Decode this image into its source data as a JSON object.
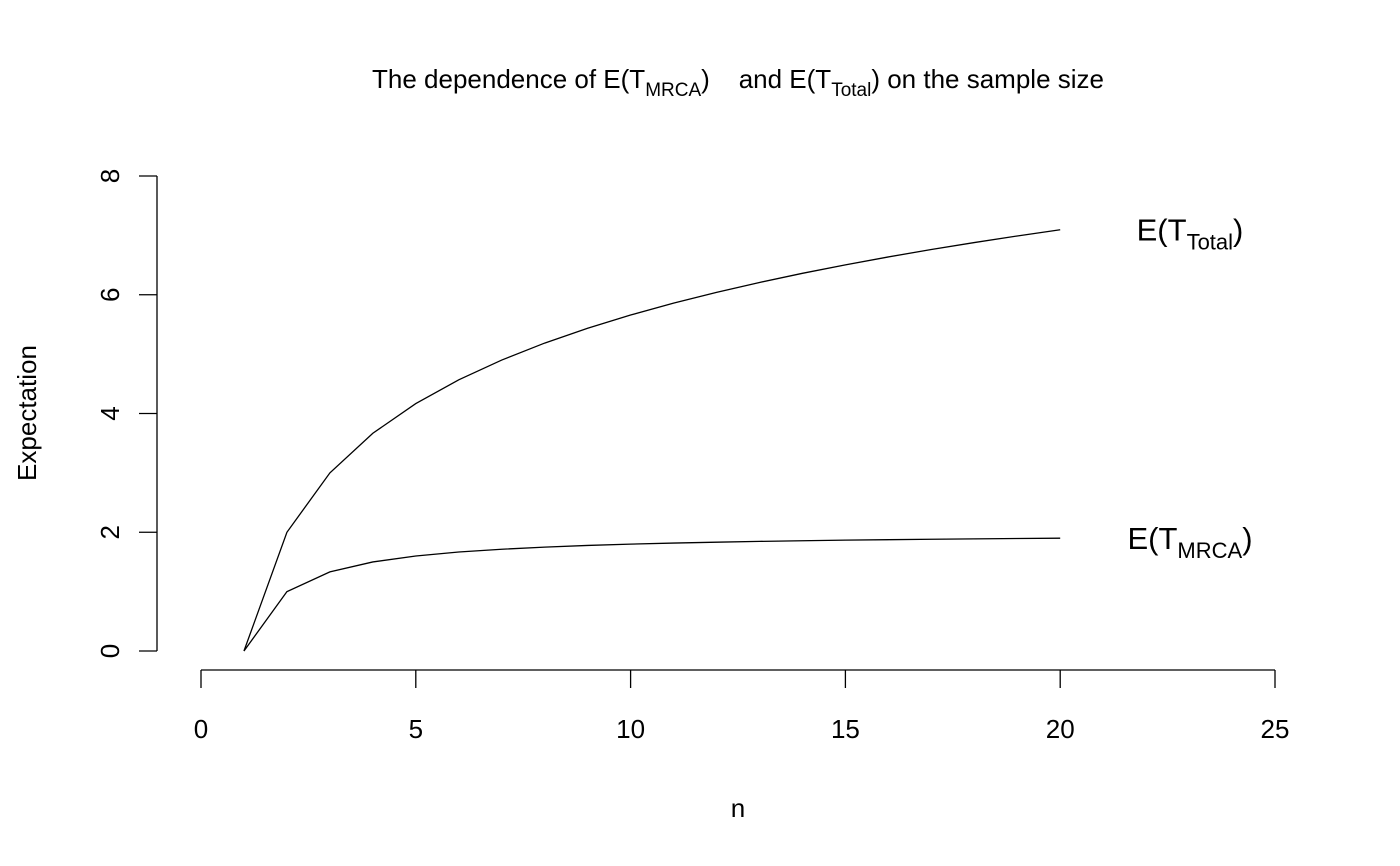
{
  "chart_data": {
    "type": "line",
    "title": {
      "pre": "The dependence of E(T",
      "sub1": "MRCA",
      "mid": ")    and E(T",
      "sub2": "Total",
      "post": ") on the sample size"
    },
    "xlabel": "n",
    "ylabel": "Expectation",
    "xlim": [
      0,
      25
    ],
    "ylim": [
      0,
      8
    ],
    "xticks": [
      0,
      5,
      10,
      15,
      20,
      25
    ],
    "yticks": [
      0,
      2,
      4,
      6,
      8
    ],
    "grid": false,
    "legend": "none",
    "x": [
      1,
      2,
      3,
      4,
      5,
      6,
      7,
      8,
      9,
      10,
      11,
      12,
      13,
      14,
      15,
      16,
      17,
      18,
      19,
      20
    ],
    "series": [
      {
        "name": "E(T_Total)",
        "label": {
          "pre": "E(T",
          "sub": "Total",
          "post": ")"
        },
        "values": [
          0,
          2,
          3,
          3.667,
          4.167,
          4.567,
          4.9,
          5.186,
          5.436,
          5.658,
          5.858,
          6.04,
          6.207,
          6.361,
          6.504,
          6.637,
          6.762,
          6.879,
          6.99,
          7.095
        ]
      },
      {
        "name": "E(T_MRCA)",
        "label": {
          "pre": "E(T",
          "sub": "MRCA",
          "post": ")"
        },
        "values": [
          0,
          1,
          1.333,
          1.5,
          1.6,
          1.667,
          1.714,
          1.75,
          1.778,
          1.8,
          1.818,
          1.833,
          1.846,
          1.857,
          1.867,
          1.875,
          1.882,
          1.889,
          1.895,
          1.9
        ]
      }
    ],
    "colors": {
      "line": "#000000",
      "background": "#ffffff"
    }
  }
}
